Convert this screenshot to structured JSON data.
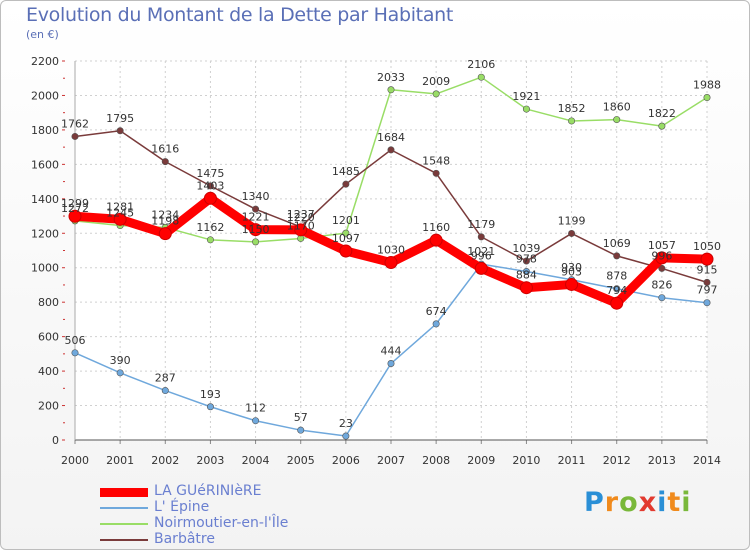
{
  "chart_data": {
    "type": "line",
    "title": "Evolution du Montant de la Dette par Habitant",
    "subtitle": "(en €)",
    "x": [
      2000,
      2001,
      2002,
      2003,
      2004,
      2005,
      2006,
      2007,
      2008,
      2009,
      2010,
      2011,
      2012,
      2013,
      2014
    ],
    "ylim": [
      0,
      2200
    ],
    "yticks": [
      0,
      200,
      400,
      600,
      800,
      1000,
      1200,
      1400,
      1600,
      1800,
      2000,
      2200
    ],
    "grid": true,
    "legend_position": "bottom-left",
    "series": [
      {
        "name": "LA GUéRINIèRE",
        "color": "#ff0000",
        "values": [
          1299,
          1281,
          1198,
          1403,
          1221,
          1220,
          1097,
          1030,
          1160,
          996,
          884,
          903,
          794,
          1057,
          1050
        ]
      },
      {
        "name": "L' Épine",
        "color": "#6fa8dc",
        "values": [
          506,
          390,
          287,
          193,
          112,
          57,
          23,
          444,
          674,
          1021,
          978,
          930,
          878,
          826,
          797
        ]
      },
      {
        "name": "Noirmoutier-en-l'Île",
        "color": "#99dd66",
        "values": [
          1272,
          1245,
          1234,
          1162,
          1150,
          1170,
          1201,
          2033,
          2009,
          2106,
          1921,
          1852,
          1860,
          1822,
          1988
        ]
      },
      {
        "name": "Barbâtre",
        "color": "#7a3b3b",
        "values": [
          1762,
          1795,
          1616,
          1475,
          1340,
          1237,
          1485,
          1684,
          1548,
          1179,
          1039,
          1199,
          1069,
          996,
          915
        ]
      }
    ]
  },
  "logo": {
    "text": "Proxiti"
  }
}
